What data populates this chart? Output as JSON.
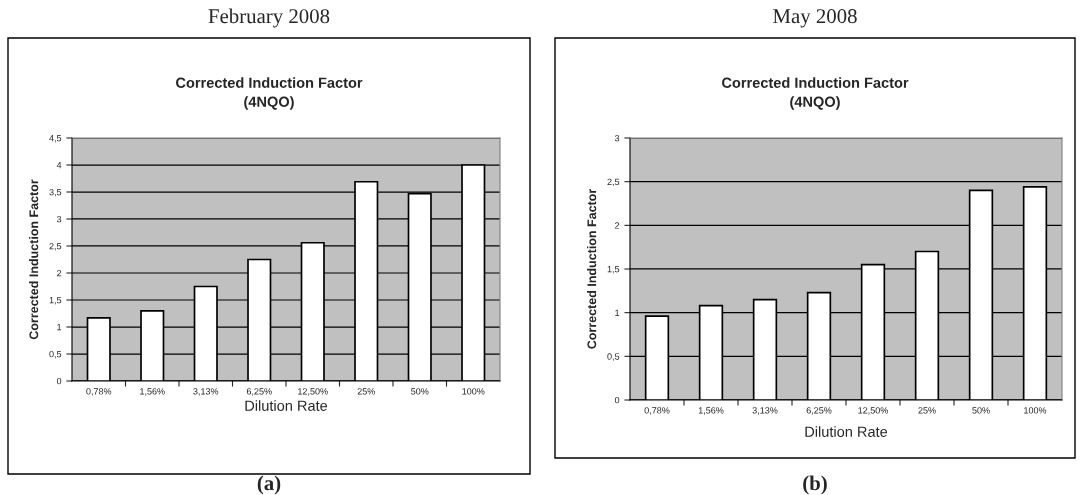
{
  "chart_data": [
    {
      "type": "bar",
      "title": "Corrected Induction Factor",
      "subtitle": "(4NQO)",
      "xlabel": "Dilution Rate",
      "ylabel": "Corrected Induction Factor",
      "annotations": [
        "February 2008",
        "(a)"
      ],
      "categories": [
        "0,78%",
        "1,56%",
        "3,13%",
        "6,25%",
        "12,50%",
        "25%",
        "50%",
        "100%"
      ],
      "values": [
        1.17,
        1.3,
        1.75,
        2.25,
        2.56,
        3.69,
        3.47,
        4.0
      ],
      "color": "#ffffff",
      "ylim": [
        0,
        4.5
      ],
      "yticks": [
        0,
        {
          "value": 0.5,
          "label": "0,5"
        },
        1,
        {
          "value": 1.5,
          "label": "1,5"
        },
        2,
        {
          "value": 2.5,
          "label": "2,5"
        },
        3,
        {
          "value": 3.5,
          "label": "3,5"
        },
        4,
        {
          "value": 4.5,
          "label": "4,5"
        }
      ],
      "grid": "y",
      "legend": false
    },
    {
      "type": "bar",
      "title": "Corrected Induction Factor",
      "subtitle": "(4NQO)",
      "xlabel": "Dilution Rate",
      "ylabel": "Corrected Induction Factor",
      "annotations": [
        "May 2008",
        "(b)"
      ],
      "categories": [
        "0,78%",
        "1,56%",
        "3,13%",
        "6,25%",
        "12,50%",
        "25%",
        "50%",
        "100%"
      ],
      "values": [
        0.96,
        1.08,
        1.15,
        1.23,
        1.55,
        1.7,
        2.4,
        2.44
      ],
      "color": "#ffffff",
      "ylim": [
        0,
        3
      ],
      "yticks": [
        0,
        {
          "value": 0.5,
          "label": "0,5"
        },
        1,
        {
          "value": 1.5,
          "label": "1,5"
        },
        2,
        {
          "value": 2.5,
          "label": "2,5"
        },
        3
      ],
      "grid": "y",
      "legend": false
    }
  ]
}
